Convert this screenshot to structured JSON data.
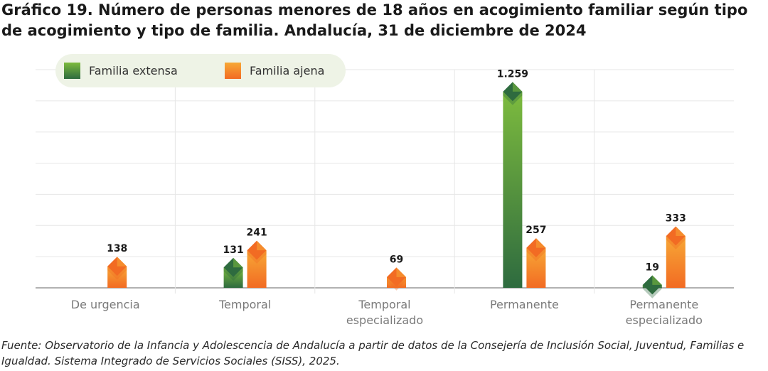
{
  "title": "Gráfico 19. Número de personas menores de 18 años en acogimiento familiar según tipo de acogimiento y tipo de familia. Andalucía, 31 de diciembre de 2024",
  "source": "Fuente: Observatorio de la Infancia y Adolescencia de Andalucía a partir de datos de la Consejería de Inclusión Social, Juventud, Familias e Igualdad. Sistema Integrado de Servicios Sociales (SISS), 2025.",
  "colors": {
    "extensa_dark": "#2e6b3f",
    "extensa_light": "#7dbb3e",
    "ajena_dark": "#f26b23",
    "ajena_light": "#f7a836",
    "grid": "#e6e6e6",
    "axis": "#999999",
    "tick_label": "#7a7a7a",
    "value_label": "#1a1a1a"
  },
  "chart_data": {
    "type": "bar",
    "title": "Gráfico 19. Número de personas menores de 18 años en acogimiento familiar según tipo de acogimiento y tipo de familia. Andalucía, 31 de diciembre de 2024",
    "categories": [
      [
        "De urgencia"
      ],
      [
        "Temporal"
      ],
      [
        "Temporal",
        "especializado"
      ],
      [
        "Permanente"
      ],
      [
        "Permanente",
        "especializado"
      ]
    ],
    "series": [
      {
        "name": "Familia extensa",
        "values": [
          null,
          131,
          null,
          1259,
          19
        ],
        "labels": [
          "",
          "131",
          "",
          "1.259",
          "19"
        ]
      },
      {
        "name": "Familia ajena",
        "values": [
          138,
          241,
          69,
          257,
          333
        ],
        "labels": [
          "138",
          "241",
          "69",
          "257",
          "333"
        ]
      }
    ],
    "xlabel": "",
    "ylabel": "",
    "ylim": [
      0,
      1400
    ],
    "grid": true,
    "legend": "top-left"
  }
}
